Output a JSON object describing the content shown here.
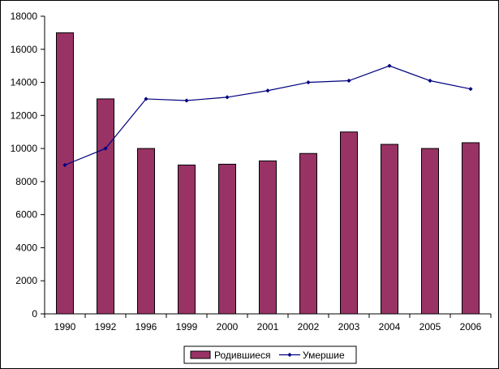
{
  "chart_data": {
    "type": "bar",
    "title": "",
    "xlabel": "",
    "ylabel": "",
    "categories": [
      "1990",
      "1992",
      "1996",
      "1999",
      "2000",
      "2001",
      "2002",
      "2003",
      "2004",
      "2005",
      "2006"
    ],
    "ylim": [
      0,
      18000
    ],
    "yticks": [
      0,
      2000,
      4000,
      6000,
      8000,
      10000,
      12000,
      14000,
      16000,
      18000
    ],
    "grid": false,
    "legend_position": "bottom",
    "series": [
      {
        "name": "Родившиеся",
        "kind": "bar",
        "color": "#993366",
        "values": [
          17000,
          13000,
          10000,
          9000,
          9050,
          9250,
          9700,
          11000,
          10250,
          10000,
          10350
        ]
      },
      {
        "name": "Умершие",
        "kind": "line",
        "color": "#000080",
        "values": [
          9000,
          10000,
          13000,
          12900,
          13100,
          13500,
          14000,
          14100,
          15000,
          14100,
          13600
        ]
      }
    ]
  }
}
